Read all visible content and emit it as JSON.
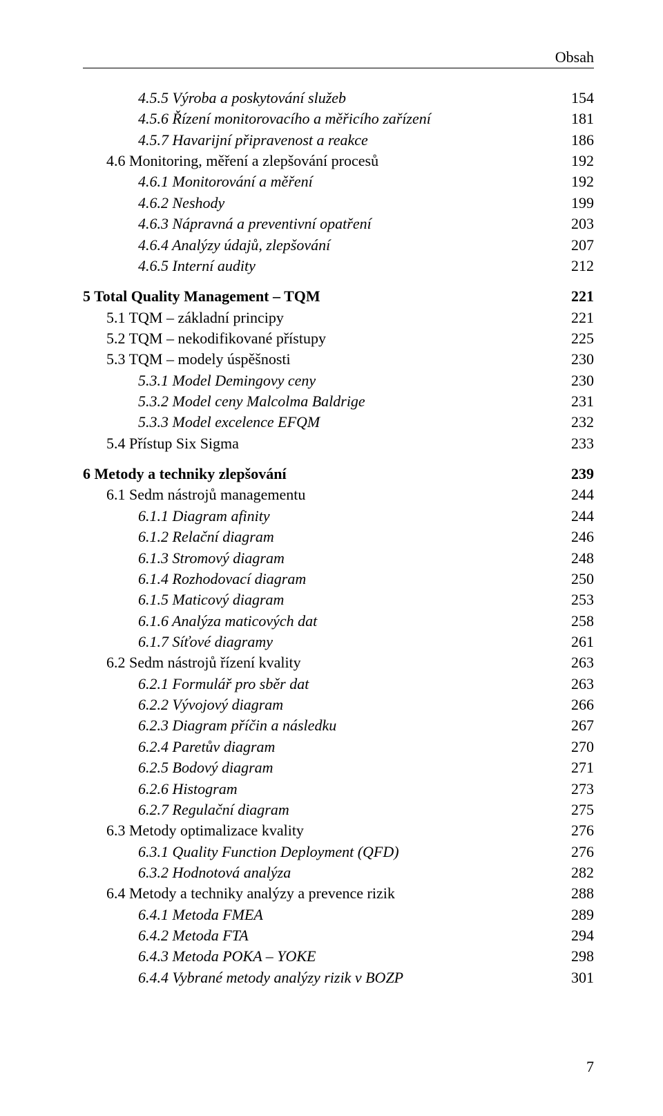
{
  "header": {
    "label": "Obsah"
  },
  "footer": {
    "page_number": "7"
  },
  "blocks": [
    {
      "entries": [
        {
          "indent": 2,
          "style": "italic",
          "label": "4.5.5 Výroba a poskytování služeb",
          "page": "154"
        },
        {
          "indent": 2,
          "style": "italic",
          "label": "4.5.6 Řízení monitorovacího a měřicího zařízení",
          "page": "181"
        },
        {
          "indent": 2,
          "style": "italic",
          "label": "4.5.7 Havarijní připravenost a reakce",
          "page": "186"
        },
        {
          "indent": 1,
          "style": "normal",
          "label": "4.6 Monitoring, měření a zlepšování procesů",
          "page": "192"
        },
        {
          "indent": 2,
          "style": "italic",
          "label": "4.6.1 Monitorování a měření",
          "page": "192"
        },
        {
          "indent": 2,
          "style": "italic",
          "label": "4.6.2 Neshody",
          "page": "199"
        },
        {
          "indent": 2,
          "style": "italic",
          "label": "4.6.3 Nápravná a preventivní opatření",
          "page": "203"
        },
        {
          "indent": 2,
          "style": "italic",
          "label": "4.6.4 Analýzy údajů, zlepšování",
          "page": "207"
        },
        {
          "indent": 2,
          "style": "italic",
          "label": "4.6.5 Interní audity",
          "page": "212"
        }
      ]
    },
    {
      "entries": [
        {
          "indent": 0,
          "style": "bold",
          "label": "5 Total Quality Management – TQM",
          "page": "221"
        },
        {
          "indent": 1,
          "style": "normal",
          "label": "5.1 TQM – základní principy",
          "page": "221"
        },
        {
          "indent": 1,
          "style": "normal",
          "label": "5.2 TQM – nekodifikované přístupy",
          "page": "225"
        },
        {
          "indent": 1,
          "style": "normal",
          "label": "5.3  TQM – modely úspěšnosti",
          "page": "230"
        },
        {
          "indent": 2,
          "style": "italic",
          "label": "5.3.1 Model Demingovy ceny",
          "page": "230"
        },
        {
          "indent": 2,
          "style": "italic",
          "label": "5.3.2 Model ceny Malcolma Baldrige",
          "page": "231"
        },
        {
          "indent": 2,
          "style": "italic",
          "label": "5.3.3 Model excelence EFQM",
          "page": "232"
        },
        {
          "indent": 1,
          "style": "normal",
          "label": "5.4 Přístup Six Sigma",
          "page": "233"
        }
      ]
    },
    {
      "entries": [
        {
          "indent": 0,
          "style": "bold",
          "label": "6 Metody a techniky zlepšování",
          "page": "239"
        },
        {
          "indent": 1,
          "style": "normal",
          "label": "6.1 Sedm nástrojů managementu",
          "page": "244"
        },
        {
          "indent": 2,
          "style": "italic",
          "label": "6.1.1 Diagram afinity",
          "page": "244"
        },
        {
          "indent": 2,
          "style": "italic",
          "label": "6.1.2 Relační diagram",
          "page": "246"
        },
        {
          "indent": 2,
          "style": "italic",
          "label": "6.1.3 Stromový diagram",
          "page": "248"
        },
        {
          "indent": 2,
          "style": "italic",
          "label": "6.1.4 Rozhodovací diagram",
          "page": "250"
        },
        {
          "indent": 2,
          "style": "italic",
          "label": "6.1.5 Maticový diagram",
          "page": "253"
        },
        {
          "indent": 2,
          "style": "italic",
          "label": "6.1.6 Analýza maticových dat",
          "page": "258"
        },
        {
          "indent": 2,
          "style": "italic",
          "label": "6.1.7 Síťové diagramy",
          "page": "261"
        },
        {
          "indent": 1,
          "style": "normal",
          "label": "6.2 Sedm nástrojů řízení kvality",
          "page": "263"
        },
        {
          "indent": 2,
          "style": "italic",
          "label": "6.2.1 Formulář pro sběr dat",
          "page": "263"
        },
        {
          "indent": 2,
          "style": "italic",
          "label": "6.2.2 Vývojový diagram",
          "page": "266"
        },
        {
          "indent": 2,
          "style": "italic",
          "label": "6.2.3 Diagram příčin a následku",
          "page": "267"
        },
        {
          "indent": 2,
          "style": "italic",
          "label": "6.2.4 Paretův diagram",
          "page": "270"
        },
        {
          "indent": 2,
          "style": "italic",
          "label": "6.2.5 Bodový diagram",
          "page": "271"
        },
        {
          "indent": 2,
          "style": "italic",
          "label": "6.2.6 Histogram",
          "page": "273"
        },
        {
          "indent": 2,
          "style": "italic",
          "label": "6.2.7 Regulační diagram",
          "page": "275"
        },
        {
          "indent": 1,
          "style": "normal",
          "label": "6.3 Metody optimalizace kvality",
          "page": "276"
        },
        {
          "indent": 2,
          "style": "italic",
          "label": "6.3.1 Quality Function Deployment (QFD)",
          "page": "276"
        },
        {
          "indent": 2,
          "style": "italic",
          "label": "6.3.2 Hodnotová analýza",
          "page": "282"
        },
        {
          "indent": 1,
          "style": "normal",
          "label": "6.4 Metody a techniky analýzy a prevence rizik",
          "page": "288"
        },
        {
          "indent": 2,
          "style": "italic",
          "label": "6.4.1 Metoda FMEA",
          "page": "289"
        },
        {
          "indent": 2,
          "style": "italic",
          "label": "6.4.2 Metoda FTA",
          "page": "294"
        },
        {
          "indent": 2,
          "style": "italic",
          "label": "6.4.3 Metoda POKA – YOKE",
          "page": "298"
        },
        {
          "indent": 2,
          "style": "italic",
          "label": "6.4.4 Vybrané metody analýzy rizik v BOZP",
          "page": "301"
        }
      ]
    }
  ]
}
